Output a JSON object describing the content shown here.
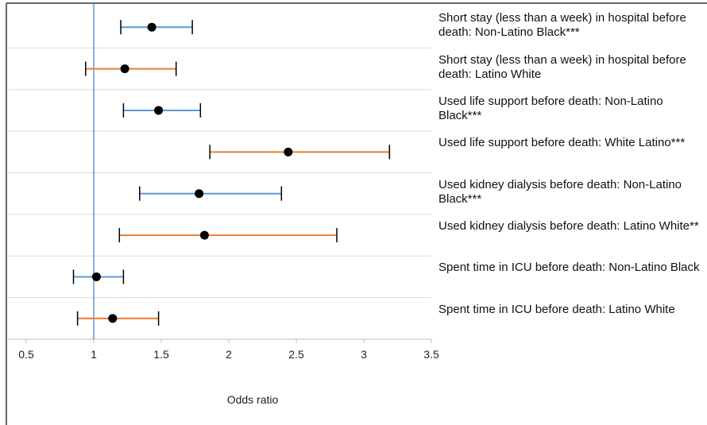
{
  "chart_data": {
    "type": "forest",
    "x_label": "Odds ratio",
    "categories": [
      "Short stay (less than a week) in hospital before death: Non-Latino Black***",
      "Short stay (less than a week) in hospital before death: Latino White",
      "Used life support before death: Non-Latino Black***",
      "Used life support before death: White Latino***",
      "Used kidney dialysis before death: Non-Latino Black***",
      "Used kidney dialysis before death: Latino White**",
      "Spent time in ICU before death: Non-Latino Black",
      "Spent time in ICU before death: Latino White"
    ],
    "values": [
      1.43,
      1.23,
      1.48,
      2.44,
      1.78,
      1.82,
      1.02,
      1.14
    ],
    "low": [
      1.2,
      0.94,
      1.22,
      1.86,
      1.34,
      1.19,
      0.85,
      0.88
    ],
    "high": [
      1.73,
      1.61,
      1.79,
      3.19,
      2.39,
      2.8,
      1.22,
      1.48
    ],
    "colors": [
      "#5b9bd5",
      "#ed7d31",
      "#5b9bd5",
      "#ed7d31",
      "#5b9bd5",
      "#ed7d31",
      "#5b9bd5",
      "#ed7d31"
    ],
    "point_color": "#000000",
    "reference_line": 1,
    "reference_color": "#5b9bd5",
    "xlim": [
      0.5,
      3.5
    ],
    "xticks": [
      0.5,
      1,
      1.5,
      2,
      2.5,
      3,
      3.5
    ]
  }
}
